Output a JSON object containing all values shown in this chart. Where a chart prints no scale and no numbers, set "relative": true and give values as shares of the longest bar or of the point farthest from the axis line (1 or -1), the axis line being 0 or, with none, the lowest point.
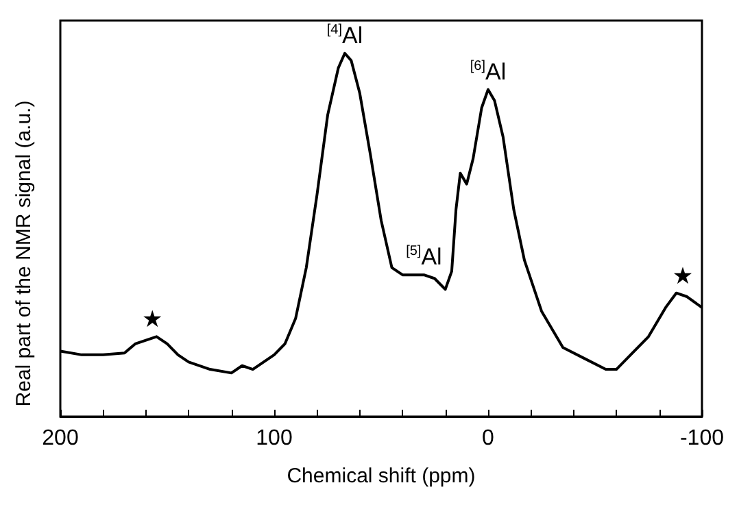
{
  "chart_data": {
    "type": "line",
    "xlabel": "Chemical shift (ppm)",
    "ylabel": "Real part of the NMR signal (a.u.)",
    "relative": true,
    "xlim": [
      200,
      -100
    ],
    "xticks": [
      200,
      {
        "value": 180,
        "label": null
      },
      {
        "value": 160,
        "label": null
      },
      {
        "value": 140,
        "label": null
      },
      {
        "value": 120,
        "label": null
      },
      100,
      {
        "value": 80,
        "label": null
      },
      {
        "value": 60,
        "label": null
      },
      {
        "value": 40,
        "label": null
      },
      {
        "value": 20,
        "label": null
      },
      0,
      {
        "value": -20,
        "label": null
      },
      {
        "value": -40,
        "label": null
      },
      {
        "value": -60,
        "label": null
      },
      {
        "value": -80,
        "label": null
      },
      -100
    ],
    "tick_labels": "x",
    "grid": false,
    "marker": "none",
    "line_style": "solid",
    "x": [
      200,
      190,
      180,
      170,
      165,
      160,
      155,
      150,
      145,
      140,
      130,
      120,
      115,
      110,
      100,
      95,
      90,
      85,
      80,
      75,
      70,
      67,
      64,
      60,
      55,
      50,
      45,
      40,
      35,
      30,
      25,
      20,
      17,
      15,
      13,
      10,
      7,
      3,
      0,
      -3,
      -7,
      -12,
      -17,
      -25,
      -35,
      -45,
      -55,
      -60,
      -65,
      -75,
      -83,
      -88,
      -93,
      -100
    ],
    "series": [
      {
        "color": "#000000",
        "values": [
          0.18,
          0.17,
          0.17,
          0.175,
          0.2,
          0.21,
          0.22,
          0.2,
          0.17,
          0.15,
          0.13,
          0.12,
          0.14,
          0.13,
          0.17,
          0.2,
          0.27,
          0.41,
          0.61,
          0.83,
          0.96,
          1.0,
          0.98,
          0.89,
          0.72,
          0.54,
          0.41,
          0.39,
          0.39,
          0.39,
          0.38,
          0.35,
          0.4,
          0.57,
          0.67,
          0.64,
          0.71,
          0.85,
          0.9,
          0.87,
          0.77,
          0.57,
          0.43,
          0.29,
          0.19,
          0.16,
          0.13,
          0.13,
          0.16,
          0.22,
          0.3,
          0.34,
          0.33,
          0.3
        ]
      }
    ],
    "annotations": [
      {
        "text": "$^{[4]}$Al",
        "x": 67,
        "y": 1.0
      },
      {
        "text": "$^{[5]}$Al",
        "x": 30,
        "y": 0.39
      },
      {
        "text": "$^{[6]}$Al",
        "x": 0,
        "y": 0.9
      },
      {
        "text": "★",
        "x": 157,
        "y": 0.22
      },
      {
        "text": "★",
        "x": -91,
        "y": 0.34
      }
    ]
  }
}
